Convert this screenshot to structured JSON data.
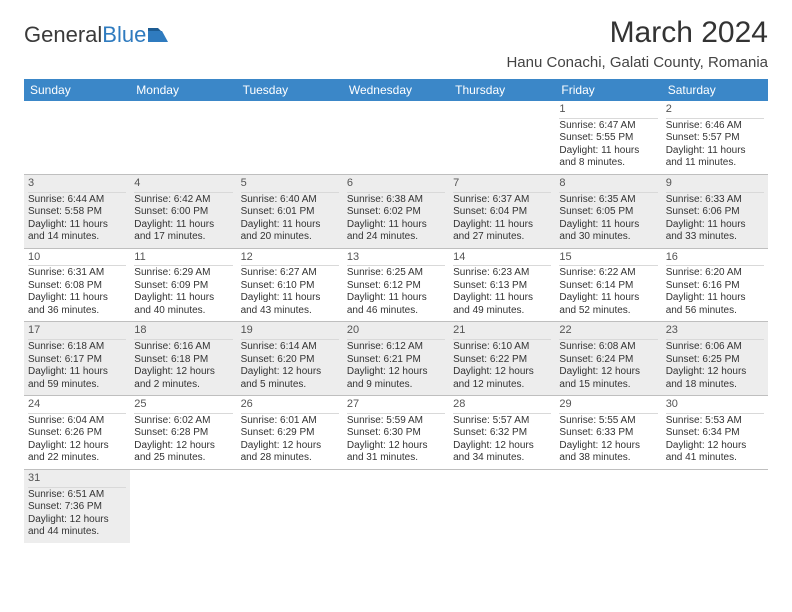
{
  "brand": {
    "part1": "General",
    "part2": "Blue"
  },
  "title": "March 2024",
  "location": "Hanu Conachi, Galati County, Romania",
  "colors": {
    "header_bg": "#3b87c8",
    "header_text": "#ffffff",
    "shaded_bg": "#ededed",
    "border": "#bfbfbf"
  },
  "weekdays": [
    "Sunday",
    "Monday",
    "Tuesday",
    "Wednesday",
    "Thursday",
    "Friday",
    "Saturday"
  ],
  "weeks": [
    [
      {
        "n": "",
        "sr": "",
        "ss": "",
        "dl": ""
      },
      {
        "n": "",
        "sr": "",
        "ss": "",
        "dl": ""
      },
      {
        "n": "",
        "sr": "",
        "ss": "",
        "dl": ""
      },
      {
        "n": "",
        "sr": "",
        "ss": "",
        "dl": ""
      },
      {
        "n": "",
        "sr": "",
        "ss": "",
        "dl": ""
      },
      {
        "n": "1",
        "sr": "Sunrise: 6:47 AM",
        "ss": "Sunset: 5:55 PM",
        "dl": "Daylight: 11 hours and 8 minutes."
      },
      {
        "n": "2",
        "sr": "Sunrise: 6:46 AM",
        "ss": "Sunset: 5:57 PM",
        "dl": "Daylight: 11 hours and 11 minutes."
      }
    ],
    [
      {
        "n": "3",
        "sr": "Sunrise: 6:44 AM",
        "ss": "Sunset: 5:58 PM",
        "dl": "Daylight: 11 hours and 14 minutes."
      },
      {
        "n": "4",
        "sr": "Sunrise: 6:42 AM",
        "ss": "Sunset: 6:00 PM",
        "dl": "Daylight: 11 hours and 17 minutes."
      },
      {
        "n": "5",
        "sr": "Sunrise: 6:40 AM",
        "ss": "Sunset: 6:01 PM",
        "dl": "Daylight: 11 hours and 20 minutes."
      },
      {
        "n": "6",
        "sr": "Sunrise: 6:38 AM",
        "ss": "Sunset: 6:02 PM",
        "dl": "Daylight: 11 hours and 24 minutes."
      },
      {
        "n": "7",
        "sr": "Sunrise: 6:37 AM",
        "ss": "Sunset: 6:04 PM",
        "dl": "Daylight: 11 hours and 27 minutes."
      },
      {
        "n": "8",
        "sr": "Sunrise: 6:35 AM",
        "ss": "Sunset: 6:05 PM",
        "dl": "Daylight: 11 hours and 30 minutes."
      },
      {
        "n": "9",
        "sr": "Sunrise: 6:33 AM",
        "ss": "Sunset: 6:06 PM",
        "dl": "Daylight: 11 hours and 33 minutes."
      }
    ],
    [
      {
        "n": "10",
        "sr": "Sunrise: 6:31 AM",
        "ss": "Sunset: 6:08 PM",
        "dl": "Daylight: 11 hours and 36 minutes."
      },
      {
        "n": "11",
        "sr": "Sunrise: 6:29 AM",
        "ss": "Sunset: 6:09 PM",
        "dl": "Daylight: 11 hours and 40 minutes."
      },
      {
        "n": "12",
        "sr": "Sunrise: 6:27 AM",
        "ss": "Sunset: 6:10 PM",
        "dl": "Daylight: 11 hours and 43 minutes."
      },
      {
        "n": "13",
        "sr": "Sunrise: 6:25 AM",
        "ss": "Sunset: 6:12 PM",
        "dl": "Daylight: 11 hours and 46 minutes."
      },
      {
        "n": "14",
        "sr": "Sunrise: 6:23 AM",
        "ss": "Sunset: 6:13 PM",
        "dl": "Daylight: 11 hours and 49 minutes."
      },
      {
        "n": "15",
        "sr": "Sunrise: 6:22 AM",
        "ss": "Sunset: 6:14 PM",
        "dl": "Daylight: 11 hours and 52 minutes."
      },
      {
        "n": "16",
        "sr": "Sunrise: 6:20 AM",
        "ss": "Sunset: 6:16 PM",
        "dl": "Daylight: 11 hours and 56 minutes."
      }
    ],
    [
      {
        "n": "17",
        "sr": "Sunrise: 6:18 AM",
        "ss": "Sunset: 6:17 PM",
        "dl": "Daylight: 11 hours and 59 minutes."
      },
      {
        "n": "18",
        "sr": "Sunrise: 6:16 AM",
        "ss": "Sunset: 6:18 PM",
        "dl": "Daylight: 12 hours and 2 minutes."
      },
      {
        "n": "19",
        "sr": "Sunrise: 6:14 AM",
        "ss": "Sunset: 6:20 PM",
        "dl": "Daylight: 12 hours and 5 minutes."
      },
      {
        "n": "20",
        "sr": "Sunrise: 6:12 AM",
        "ss": "Sunset: 6:21 PM",
        "dl": "Daylight: 12 hours and 9 minutes."
      },
      {
        "n": "21",
        "sr": "Sunrise: 6:10 AM",
        "ss": "Sunset: 6:22 PM",
        "dl": "Daylight: 12 hours and 12 minutes."
      },
      {
        "n": "22",
        "sr": "Sunrise: 6:08 AM",
        "ss": "Sunset: 6:24 PM",
        "dl": "Daylight: 12 hours and 15 minutes."
      },
      {
        "n": "23",
        "sr": "Sunrise: 6:06 AM",
        "ss": "Sunset: 6:25 PM",
        "dl": "Daylight: 12 hours and 18 minutes."
      }
    ],
    [
      {
        "n": "24",
        "sr": "Sunrise: 6:04 AM",
        "ss": "Sunset: 6:26 PM",
        "dl": "Daylight: 12 hours and 22 minutes."
      },
      {
        "n": "25",
        "sr": "Sunrise: 6:02 AM",
        "ss": "Sunset: 6:28 PM",
        "dl": "Daylight: 12 hours and 25 minutes."
      },
      {
        "n": "26",
        "sr": "Sunrise: 6:01 AM",
        "ss": "Sunset: 6:29 PM",
        "dl": "Daylight: 12 hours and 28 minutes."
      },
      {
        "n": "27",
        "sr": "Sunrise: 5:59 AM",
        "ss": "Sunset: 6:30 PM",
        "dl": "Daylight: 12 hours and 31 minutes."
      },
      {
        "n": "28",
        "sr": "Sunrise: 5:57 AM",
        "ss": "Sunset: 6:32 PM",
        "dl": "Daylight: 12 hours and 34 minutes."
      },
      {
        "n": "29",
        "sr": "Sunrise: 5:55 AM",
        "ss": "Sunset: 6:33 PM",
        "dl": "Daylight: 12 hours and 38 minutes."
      },
      {
        "n": "30",
        "sr": "Sunrise: 5:53 AM",
        "ss": "Sunset: 6:34 PM",
        "dl": "Daylight: 12 hours and 41 minutes."
      }
    ],
    [
      {
        "n": "31",
        "sr": "Sunrise: 6:51 AM",
        "ss": "Sunset: 7:36 PM",
        "dl": "Daylight: 12 hours and 44 minutes."
      },
      {
        "n": "",
        "sr": "",
        "ss": "",
        "dl": ""
      },
      {
        "n": "",
        "sr": "",
        "ss": "",
        "dl": ""
      },
      {
        "n": "",
        "sr": "",
        "ss": "",
        "dl": ""
      },
      {
        "n": "",
        "sr": "",
        "ss": "",
        "dl": ""
      },
      {
        "n": "",
        "sr": "",
        "ss": "",
        "dl": ""
      },
      {
        "n": "",
        "sr": "",
        "ss": "",
        "dl": ""
      }
    ]
  ]
}
